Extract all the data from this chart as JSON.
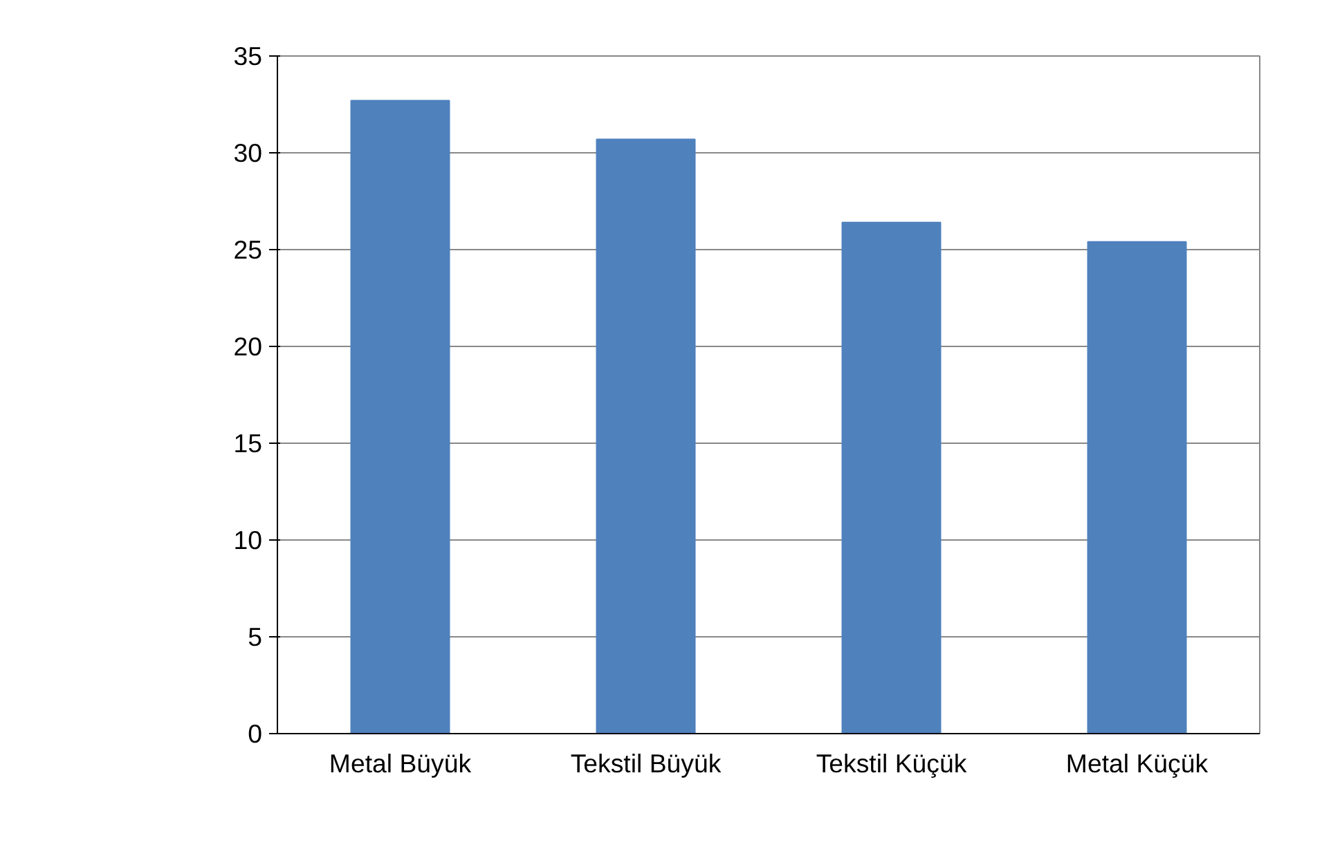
{
  "chart_data": {
    "type": "bar",
    "categories": [
      "Metal Büyük",
      "Tekstil Büyük",
      "Tekstil Küçük",
      "Metal Küçük"
    ],
    "values": [
      32.7,
      30.7,
      26.4,
      25.4
    ],
    "color": "#4f81bd",
    "ylim": [
      0,
      35
    ],
    "yticks": [
      0,
      5,
      10,
      15,
      20,
      25,
      30,
      35
    ],
    "grid": "y"
  }
}
